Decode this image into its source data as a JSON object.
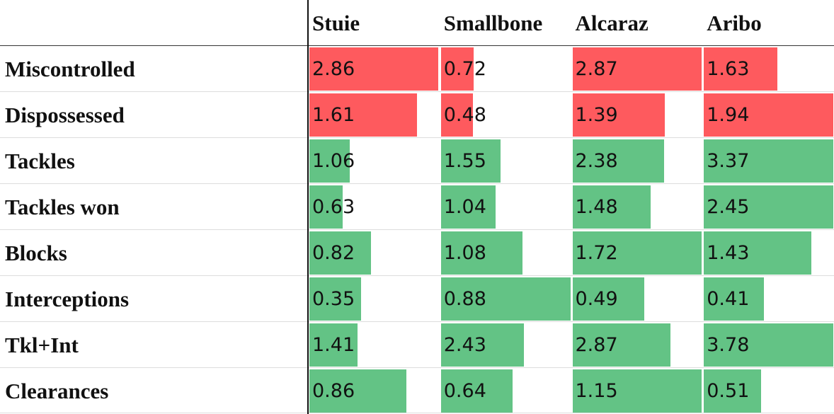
{
  "table": {
    "columns": [
      "Stuie",
      "Smallbone",
      "Alcaraz",
      "Aribo"
    ],
    "rows": [
      {
        "label": "Miscontrolled",
        "color": "#fe5a5e",
        "values": [
          2.86,
          0.72,
          2.87,
          1.63
        ]
      },
      {
        "label": "Dispossessed",
        "color": "#fe5a5e",
        "values": [
          1.61,
          0.48,
          1.39,
          1.94
        ]
      },
      {
        "label": "Tackles",
        "color": "#63c385",
        "values": [
          1.06,
          1.55,
          2.38,
          3.37
        ]
      },
      {
        "label": "Tackles won",
        "color": "#63c385",
        "values": [
          0.63,
          1.04,
          1.48,
          2.45
        ]
      },
      {
        "label": "Blocks",
        "color": "#63c385",
        "values": [
          0.82,
          1.08,
          1.72,
          1.43
        ]
      },
      {
        "label": "Interceptions",
        "color": "#63c385",
        "values": [
          0.35,
          0.88,
          0.49,
          0.41
        ]
      },
      {
        "label": "Tkl+Int",
        "color": "#63c385",
        "values": [
          1.41,
          2.43,
          2.87,
          3.78
        ]
      },
      {
        "label": "Clearances",
        "color": "#63c385",
        "values": [
          0.86,
          0.64,
          1.15,
          0.51
        ]
      }
    ]
  }
}
